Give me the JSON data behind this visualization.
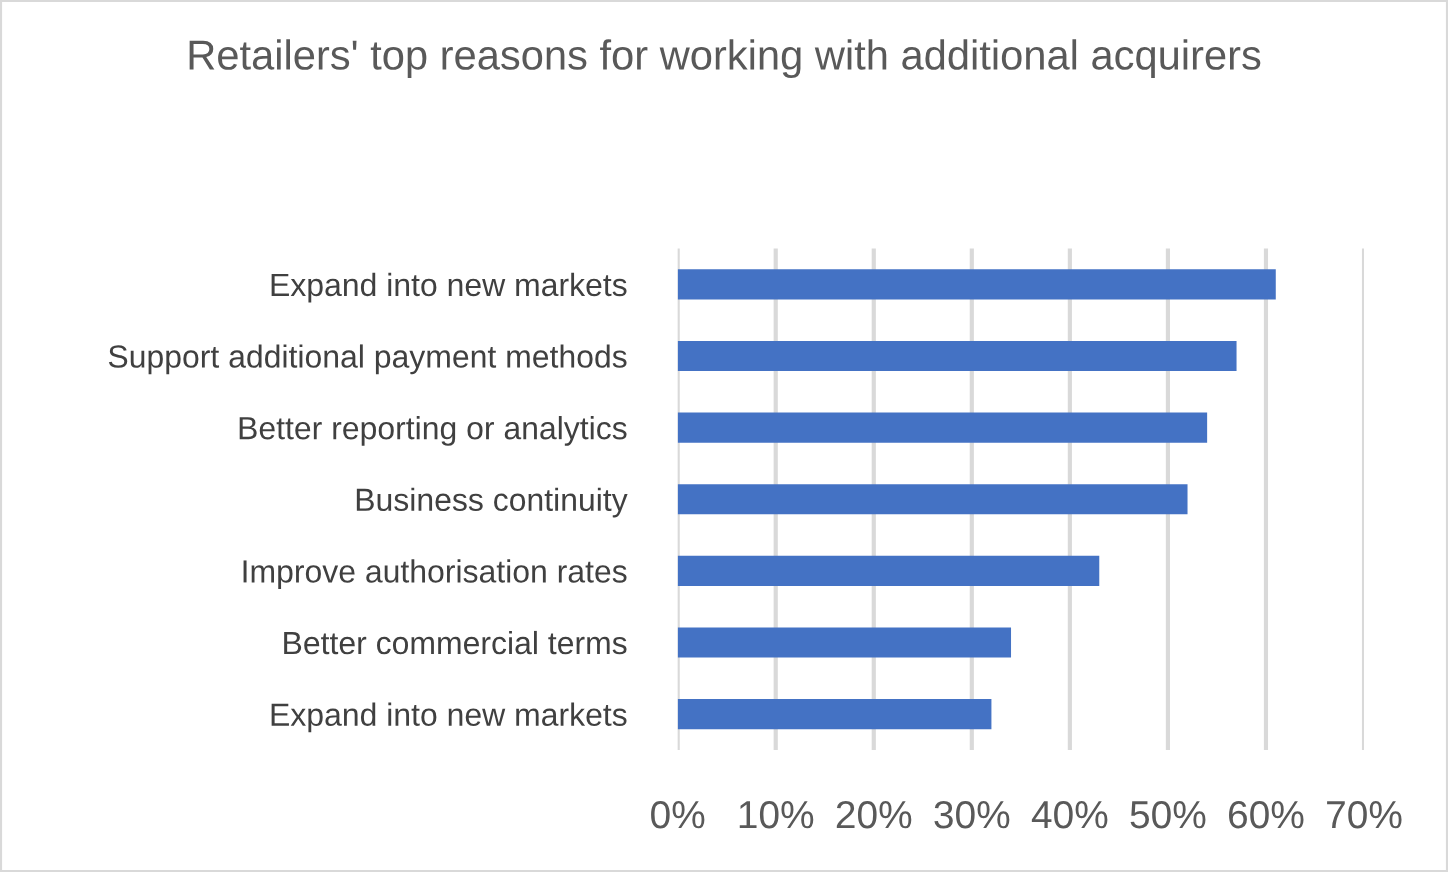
{
  "chart_data": {
    "type": "bar",
    "orientation": "horizontal",
    "title": "Retailers' top reasons for working with additional acquirers",
    "categories": [
      "Expand into new markets",
      "Support additional payment methods",
      "Better reporting or analytics",
      "Business continuity",
      "Improve authorisation rates",
      "Better commercial terms",
      "Expand into new markets"
    ],
    "values": [
      61,
      57,
      54,
      52,
      43,
      34,
      32
    ],
    "color": "#4472c4",
    "xlim": [
      0,
      70
    ],
    "xticks": [
      {
        "value": 0,
        "label": "0%"
      },
      {
        "value": 10,
        "label": "10%"
      },
      {
        "value": 20,
        "label": "20%"
      },
      {
        "value": 30,
        "label": "30%"
      },
      {
        "value": 40,
        "label": "40%"
      },
      {
        "value": 50,
        "label": "50%"
      },
      {
        "value": 60,
        "label": "60%"
      },
      {
        "value": 70,
        "label": "70%"
      }
    ],
    "grid": "x",
    "legend": false
  }
}
